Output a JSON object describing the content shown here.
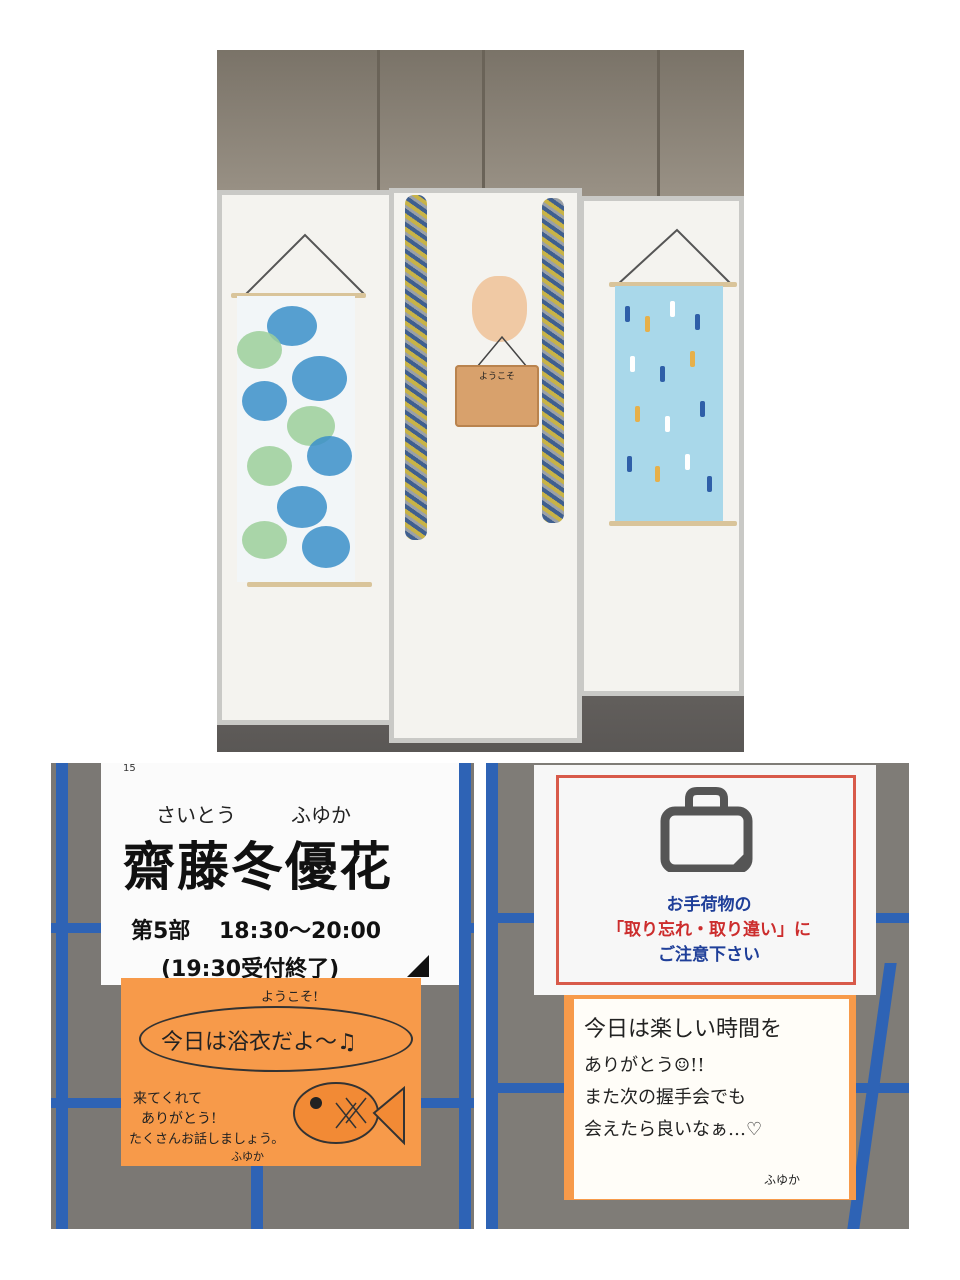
{
  "sign_top_left": {
    "number": "15",
    "furigana_family": "さいとう",
    "furigana_given": "ふゆか",
    "name": "齋藤冬優花",
    "session": "第5部",
    "time": "18:30〜20:00",
    "reception_end": "(19:30受付終了)"
  },
  "orange_note_left": {
    "greeting": "ようこそ!",
    "bubble_text": "今日は浴衣だよ〜♫",
    "line1": "来てくれて",
    "line2": "ありがとう!",
    "line3": "たくさんお話しましょう。",
    "signature": "ふゆか"
  },
  "notice_sign": {
    "icon": "bag-icon",
    "line1": "お手荷物の",
    "line2": "「取り忘れ・取り違い」に",
    "line3": "ご注意下さい"
  },
  "message_note_right": {
    "line1": "今日は楽しい時間を",
    "line2": "ありがとう☺!!",
    "line3": "また次の握手会でも",
    "line4": "会えたら良いなぁ…♡",
    "signature": "ふゆか"
  },
  "plaque": {
    "text": "ようこそ"
  },
  "colors": {
    "accent_orange": "#f79a4a",
    "notice_red": "#cc2d2d",
    "notice_blue": "#1f3f99",
    "rail_blue": "#2e63b5"
  }
}
